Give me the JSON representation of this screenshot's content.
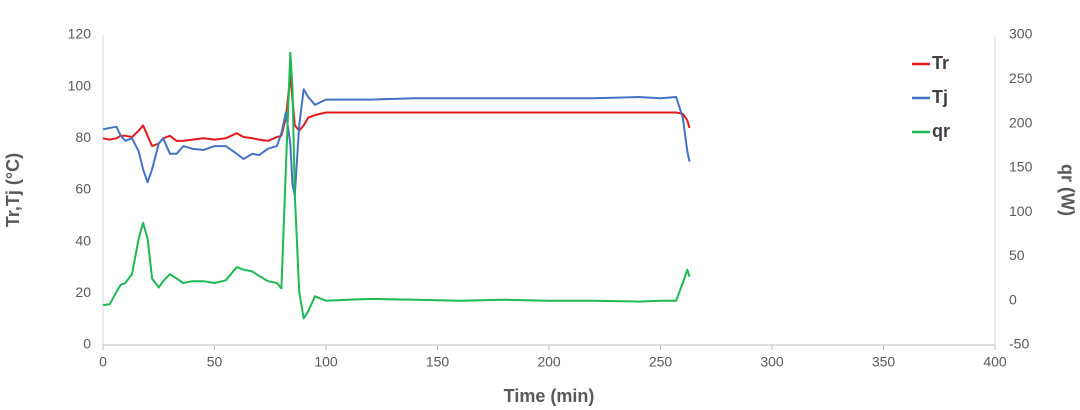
{
  "chart_data": {
    "type": "line",
    "x_label": "Time (min)",
    "y_label": "Tr,Tj (°C)",
    "y2_label": "qr (W)",
    "xlim": [
      0,
      400
    ],
    "xticks": [
      0,
      50,
      100,
      150,
      200,
      250,
      300,
      350,
      400
    ],
    "ylim": [
      0,
      120
    ],
    "yticks": [
      0,
      20,
      40,
      60,
      80,
      100,
      120
    ],
    "y2lim": [
      -50,
      300
    ],
    "y2ticks": [
      -50,
      0,
      50,
      100,
      150,
      200,
      250,
      300
    ],
    "legend": "top-right",
    "grid": false,
    "x": [
      0,
      3,
      6,
      8,
      10,
      13,
      16,
      18,
      20,
      22,
      25,
      27,
      30,
      33,
      36,
      40,
      45,
      50,
      55,
      60,
      63,
      67,
      70,
      74,
      78,
      80,
      82,
      84,
      85,
      86,
      88,
      90,
      92,
      95,
      100,
      110,
      120,
      140,
      160,
      180,
      200,
      220,
      240,
      250,
      257,
      260,
      262,
      263
    ],
    "series": [
      {
        "name": "Tr",
        "color": "#e31a1c",
        "values": [
          80,
          79.5,
          80,
          81,
          81,
          80.5,
          83,
          85,
          81,
          77,
          78,
          80,
          81,
          79,
          79,
          79.5,
          80,
          79.5,
          80,
          82,
          80.5,
          80,
          79.5,
          79,
          80.5,
          81,
          88,
          104,
          95,
          85,
          83,
          85,
          88,
          89,
          90,
          90,
          90,
          90,
          90,
          90,
          90,
          90,
          90,
          90,
          90,
          89.5,
          87,
          84
        ]
      },
      {
        "name": "Tj",
        "color": "#4472c4",
        "values": [
          83.5,
          84,
          84.5,
          81,
          79,
          80,
          75,
          68,
          63,
          68,
          78,
          80,
          74,
          74,
          77,
          76,
          75.5,
          77,
          77,
          74,
          72,
          74,
          73.5,
          76,
          77,
          82,
          90,
          78,
          62,
          58,
          85,
          99,
          96,
          93,
          95,
          95,
          95,
          95.5,
          95.5,
          95.5,
          95.5,
          95.5,
          96,
          95.5,
          96,
          88,
          75,
          71
        ]
      },
      {
        "name": "qr",
        "color": "#1db954",
        "axis": "y2",
        "values": [
          -5,
          -4,
          10,
          18,
          20,
          30,
          70,
          88,
          70,
          25,
          15,
          22,
          30,
          25,
          20,
          22,
          22,
          20,
          23,
          38,
          35,
          33,
          28,
          22,
          20,
          14,
          150,
          280,
          240,
          120,
          10,
          -20,
          -12,
          5,
          0,
          1,
          2,
          1,
          0,
          1,
          0,
          0,
          -1,
          0,
          0,
          20,
          35,
          27
        ]
      }
    ]
  }
}
